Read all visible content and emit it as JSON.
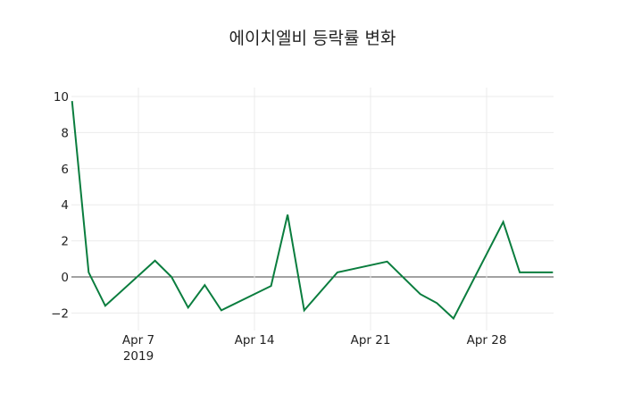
{
  "title": "에이치엘비 등락률 변화",
  "chart_data": {
    "type": "line",
    "title": "에이치엘비 등락률 변화",
    "xlabel": "",
    "ylabel": "",
    "ylim": [
      -2.9,
      10.3
    ],
    "yticks": [
      -2,
      0,
      2,
      4,
      6,
      8,
      10
    ],
    "ytick_labels": [
      "−2",
      "0",
      "2",
      "4",
      "6",
      "8",
      "10"
    ],
    "xticks": [
      "2019-04-07",
      "2019-04-14",
      "2019-04-21",
      "2019-04-28"
    ],
    "xtick_labels": [
      "Apr 7",
      "Apr 14",
      "Apr 21",
      "Apr 28"
    ],
    "xtick_sublabel": "2019",
    "grid": true,
    "line_color": "#0a7d3e",
    "series": [
      {
        "name": "등락률",
        "x": [
          "2019-04-03",
          "2019-04-04",
          "2019-04-05",
          "2019-04-08",
          "2019-04-09",
          "2019-04-10",
          "2019-04-11",
          "2019-04-12",
          "2019-04-15",
          "2019-04-16",
          "2019-04-17",
          "2019-04-19",
          "2019-04-22",
          "2019-04-24",
          "2019-04-25",
          "2019-04-26",
          "2019-04-29",
          "2019-04-30",
          "2019-05-02"
        ],
        "values": [
          9.75,
          0.25,
          -1.6,
          0.9,
          0.0,
          -1.7,
          -0.45,
          -1.85,
          -0.5,
          3.45,
          -1.85,
          0.25,
          0.85,
          -0.95,
          -1.45,
          -2.3,
          3.05,
          0.25,
          0.25
        ]
      }
    ]
  }
}
